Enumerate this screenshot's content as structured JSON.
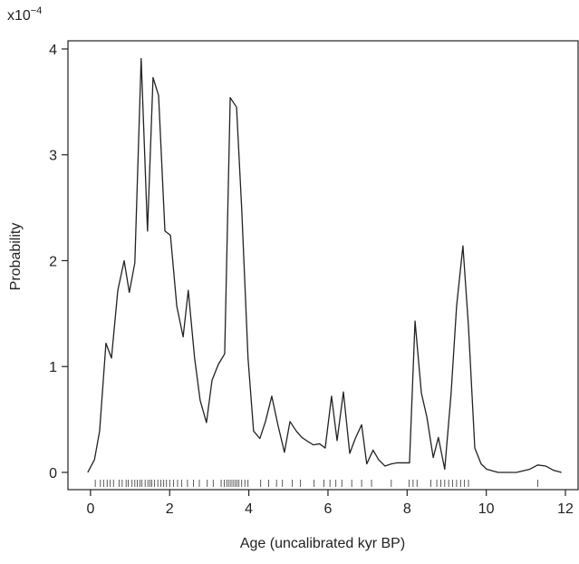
{
  "chart_data": {
    "type": "line",
    "x_label": "Age (uncalibrated kyr BP)",
    "y_label": "Probability",
    "y_multiplier_base": "x10",
    "y_multiplier_exponent": "−4",
    "xlim": [
      -0.57,
      12.32
    ],
    "ylim": [
      -0.163,
      4.077
    ],
    "xticks": [
      0,
      2,
      4,
      6,
      8,
      10,
      12
    ],
    "yticks": [
      0,
      1,
      2,
      3,
      4
    ],
    "color": "#222222",
    "x": [
      -0.07,
      0.1,
      0.23,
      0.39,
      0.53,
      0.69,
      0.85,
      0.98,
      1.12,
      1.28,
      1.44,
      1.58,
      1.72,
      1.88,
      2.02,
      2.18,
      2.34,
      2.47,
      2.63,
      2.77,
      2.93,
      3.07,
      3.23,
      3.39,
      3.53,
      3.69,
      3.82,
      3.98,
      4.12,
      4.28,
      4.42,
      4.58,
      4.74,
      4.9,
      5.04,
      5.2,
      5.34,
      5.5,
      5.63,
      5.79,
      5.93,
      6.09,
      6.23,
      6.39,
      6.55,
      6.69,
      6.85,
      6.98,
      7.14,
      7.28,
      7.44,
      7.6,
      7.74,
      8.06,
      8.2,
      8.36,
      8.5,
      8.66,
      8.79,
      8.95,
      9.11,
      9.25,
      9.41,
      9.55,
      9.71,
      9.87,
      10.01,
      10.3,
      10.76,
      11.1,
      11.3,
      11.5,
      11.7,
      11.9
    ],
    "values": [
      0,
      0.12,
      0.39,
      1.22,
      1.08,
      1.72,
      2.0,
      1.7,
      1.98,
      3.91,
      2.28,
      3.73,
      3.56,
      2.28,
      2.24,
      1.57,
      1.28,
      1.72,
      1.08,
      0.68,
      0.47,
      0.87,
      1.02,
      1.12,
      3.54,
      3.45,
      2.49,
      1.08,
      0.39,
      0.32,
      0.48,
      0.72,
      0.44,
      0.19,
      0.48,
      0.39,
      0.33,
      0.29,
      0.26,
      0.27,
      0.23,
      0.72,
      0.3,
      0.76,
      0.18,
      0.32,
      0.45,
      0.08,
      0.21,
      0.12,
      0.06,
      0.08,
      0.09,
      0.09,
      1.43,
      0.75,
      0.52,
      0.14,
      0.33,
      0.03,
      0.74,
      1.57,
      2.14,
      1.38,
      0.23,
      0.08,
      0.03,
      0.0,
      0.0,
      0.03,
      0.07,
      0.06,
      0.02,
      0.0
    ],
    "rug": [
      0.12,
      0.25,
      0.33,
      0.42,
      0.5,
      0.58,
      0.72,
      0.8,
      0.9,
      0.95,
      1.05,
      1.12,
      1.18,
      1.25,
      1.3,
      1.38,
      1.45,
      1.5,
      1.55,
      1.62,
      1.7,
      1.78,
      1.85,
      1.92,
      2.0,
      2.1,
      2.2,
      2.3,
      2.45,
      2.6,
      2.75,
      2.95,
      3.1,
      3.3,
      3.38,
      3.45,
      3.5,
      3.55,
      3.6,
      3.65,
      3.7,
      3.75,
      3.82,
      3.9,
      3.98,
      4.3,
      4.5,
      4.7,
      4.85,
      5.1,
      5.3,
      5.65,
      5.9,
      6.05,
      6.2,
      6.35,
      6.6,
      6.85,
      7.1,
      7.6,
      8.05,
      8.15,
      8.25,
      8.6,
      8.75,
      8.85,
      8.95,
      9.05,
      9.15,
      9.25,
      9.35,
      9.45,
      9.55,
      11.3
    ]
  }
}
